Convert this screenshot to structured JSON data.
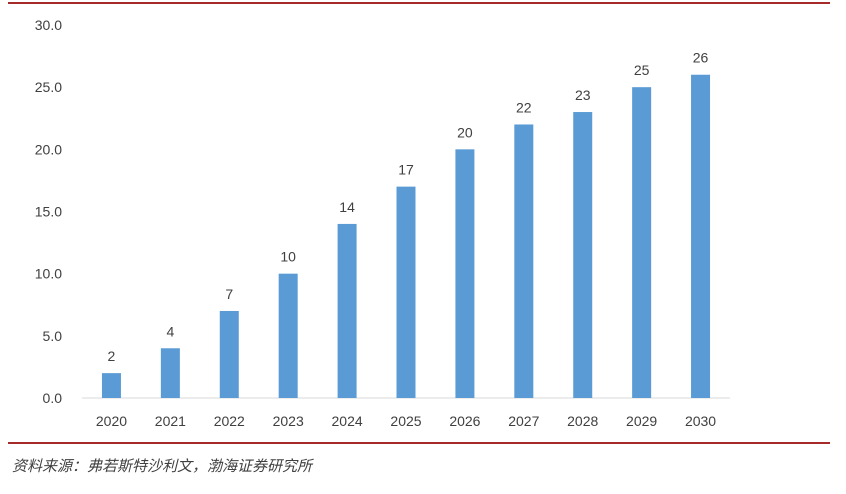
{
  "chart_data": {
    "type": "bar",
    "categories": [
      "2020",
      "2021",
      "2022",
      "2023",
      "2024",
      "2025",
      "2026",
      "2027",
      "2028",
      "2029",
      "2030"
    ],
    "values": [
      2,
      4,
      7,
      10,
      14,
      17,
      20,
      22,
      23,
      25,
      26
    ],
    "value_labels": [
      "2",
      "4",
      "7",
      "10",
      "14",
      "17",
      "20",
      "22",
      "23",
      "25",
      "26"
    ],
    "ylim": [
      0,
      30
    ],
    "yticks": [
      0,
      5,
      10,
      15,
      20,
      25,
      30
    ],
    "ytick_labels": [
      "0.0",
      "5.0",
      "10.0",
      "15.0",
      "20.0",
      "25.0",
      "30.0"
    ],
    "title": "",
    "xlabel": "",
    "ylabel": "",
    "grid": false,
    "bar_color": "#5b9bd5"
  },
  "source": "资料来源：弗若斯特沙利文，渤海证券研究所",
  "colors": {
    "rule": "#a52a2a",
    "text": "#404040",
    "axis": "#d9d9d9"
  }
}
